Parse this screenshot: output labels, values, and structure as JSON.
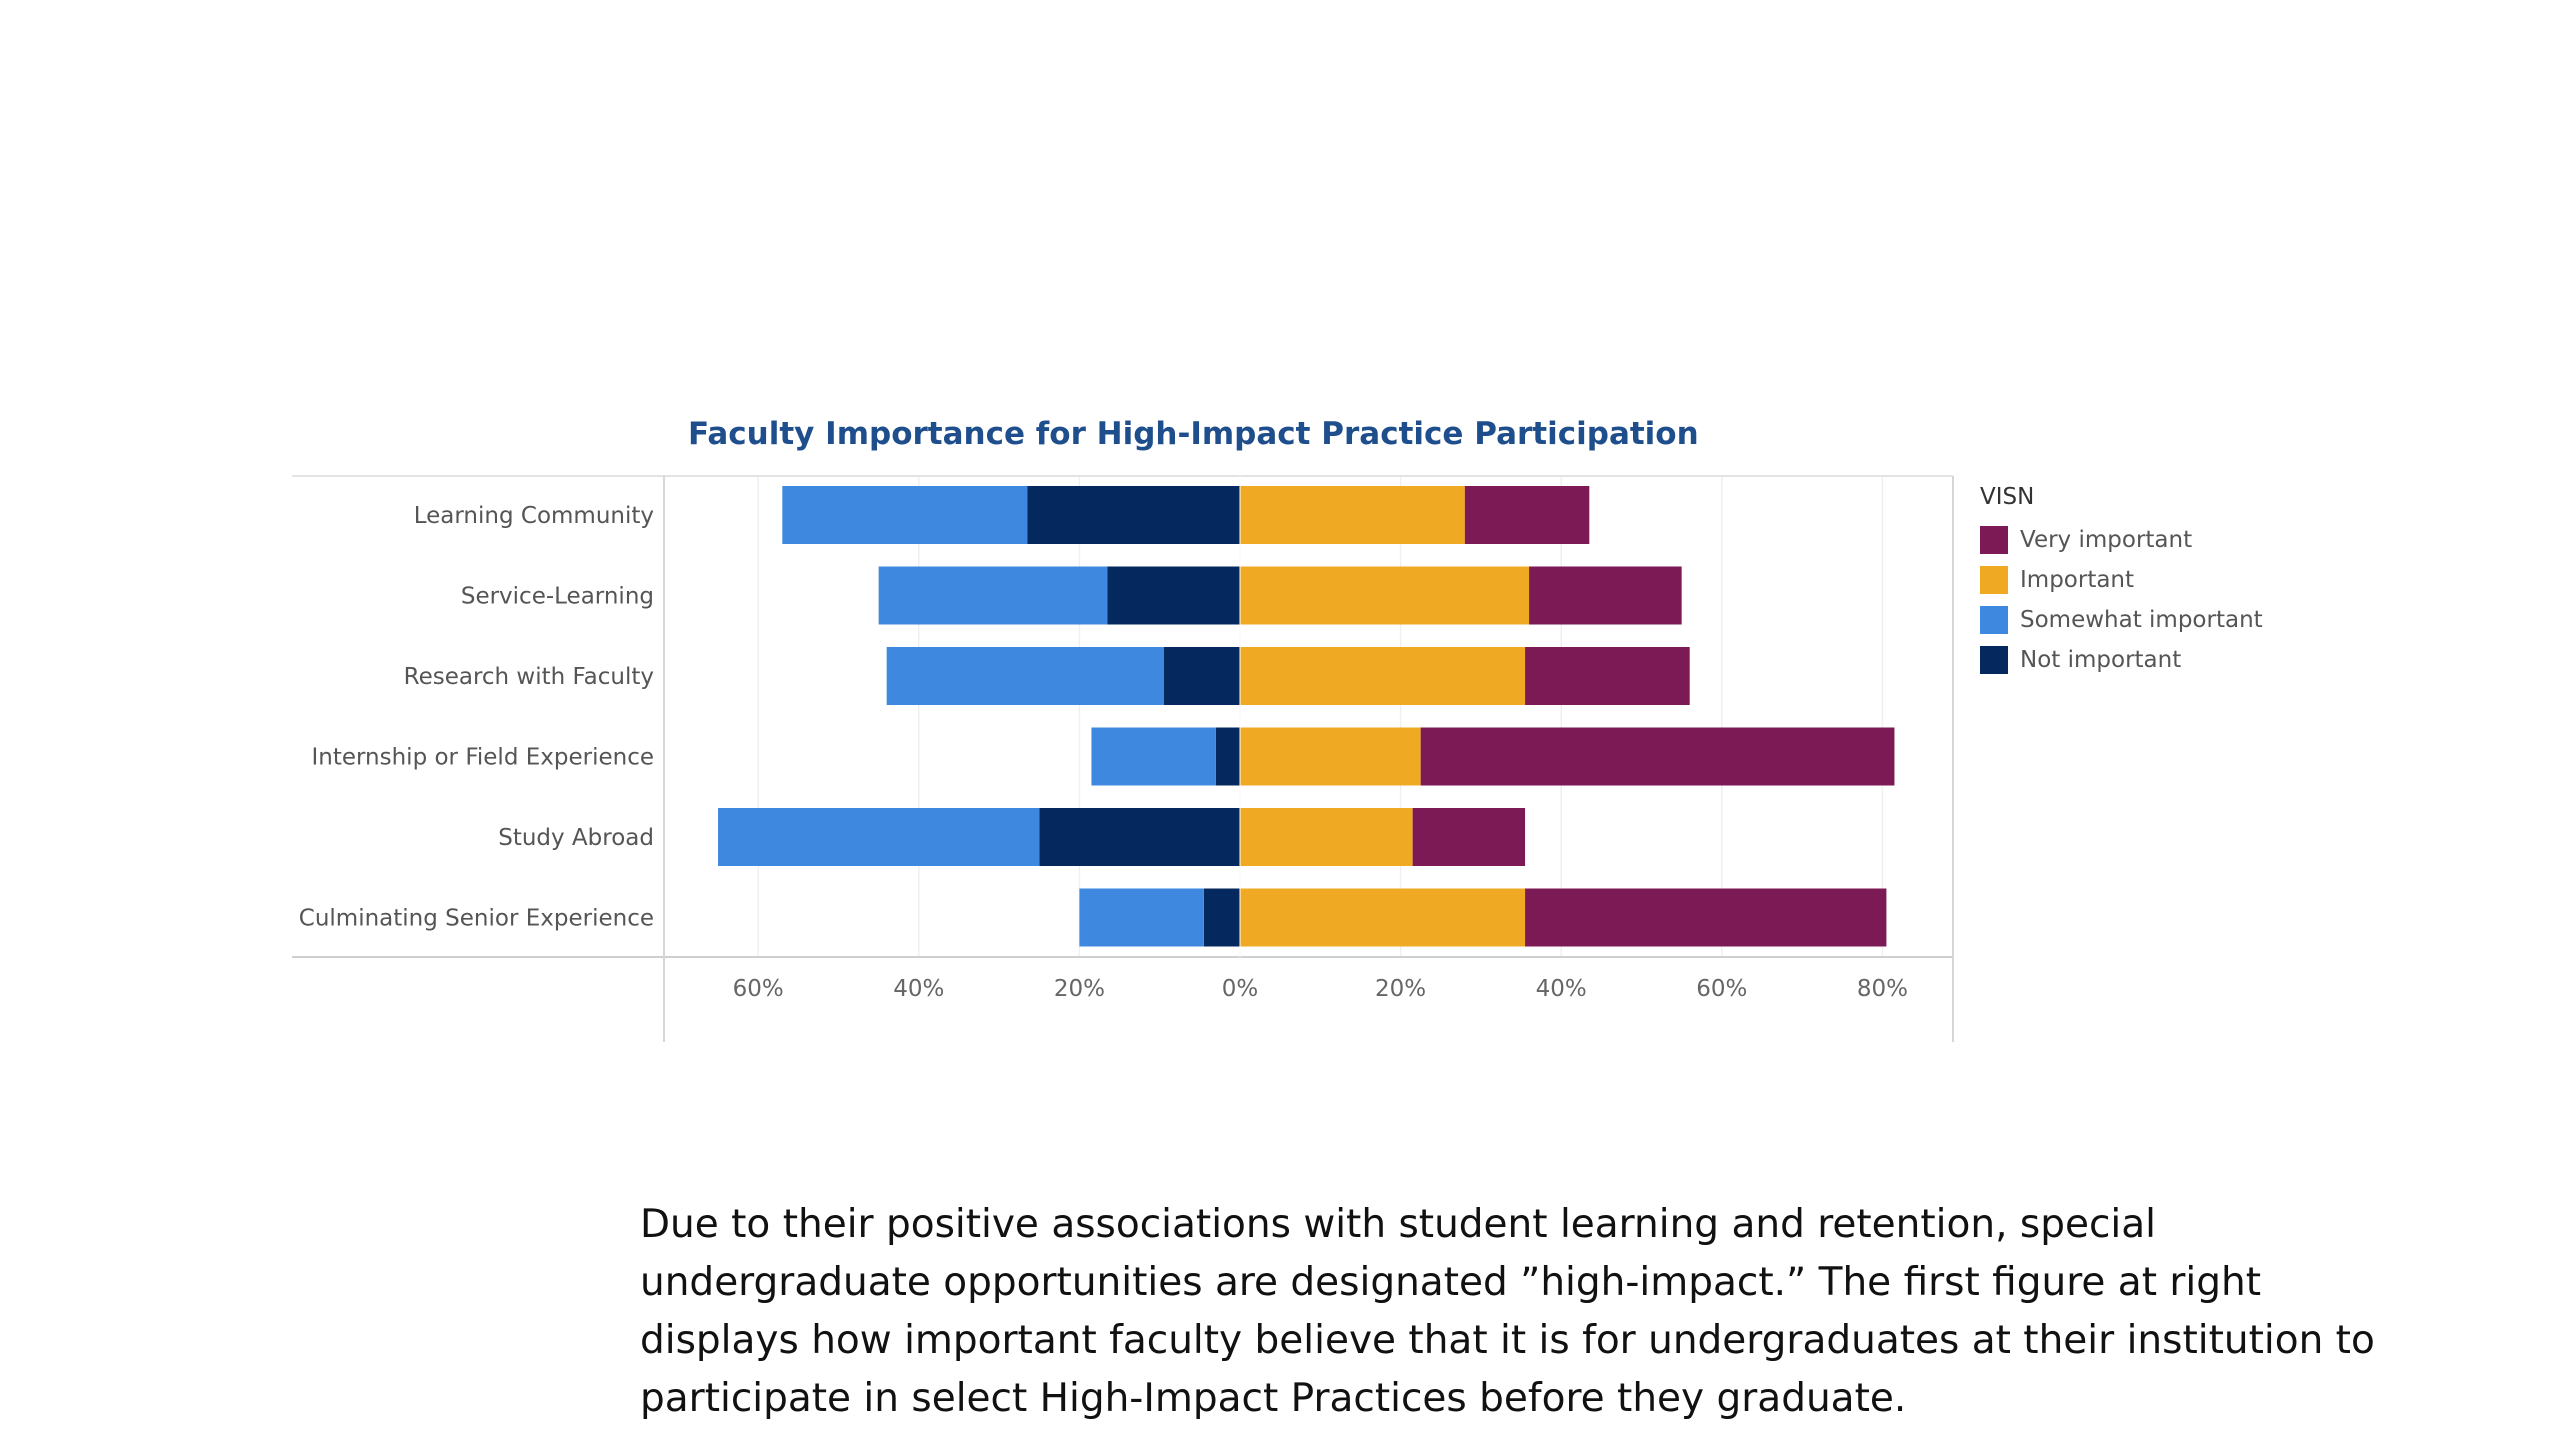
{
  "chart_data": {
    "type": "bar",
    "title": "Faculty Importance for High-Impact Practice Participation",
    "orientation": "horizontal-diverging",
    "categories": [
      "Learning Community",
      "Service-Learning",
      "Research with Faculty",
      "Internship or Field Experience",
      "Study Abroad",
      "Culminating Senior Experience"
    ],
    "series": [
      {
        "name": "Very important",
        "side": "positive",
        "color": "#7b1a54",
        "values": [
          15.5,
          19,
          20.5,
          59,
          14,
          45
        ]
      },
      {
        "name": "Important",
        "side": "positive",
        "color": "#f0a923",
        "values": [
          28,
          36,
          35.5,
          22.5,
          21.5,
          35.5
        ]
      },
      {
        "name": "Somewhat important",
        "side": "negative",
        "color": "#3f88e0",
        "values": [
          30.5,
          28.5,
          34.5,
          15.5,
          40,
          15.5
        ]
      },
      {
        "name": "Not important",
        "side": "negative",
        "color": "#05295e",
        "values": [
          26.5,
          16.5,
          9.5,
          3,
          25,
          4.5
        ]
      }
    ],
    "xticks": [
      -60,
      -40,
      -20,
      0,
      20,
      40,
      60,
      80
    ],
    "xtick_labels": [
      "60%",
      "40%",
      "20%",
      "0%",
      "20%",
      "40%",
      "60%",
      "80%"
    ],
    "xlim": [
      -72,
      89
    ],
    "legend": {
      "title": "VISN",
      "position": "right",
      "entries": [
        "Very important",
        "Important",
        "Somewhat important",
        "Not important"
      ]
    },
    "grid": true
  },
  "caption": "Due to their positive associations with student learning and retention, special undergraduate opportunities are designated ”high-impact.” The first figure at right displays how important faculty believe that it is for undergraduates at their institution to participate in select High-Impact Practices before they graduate."
}
